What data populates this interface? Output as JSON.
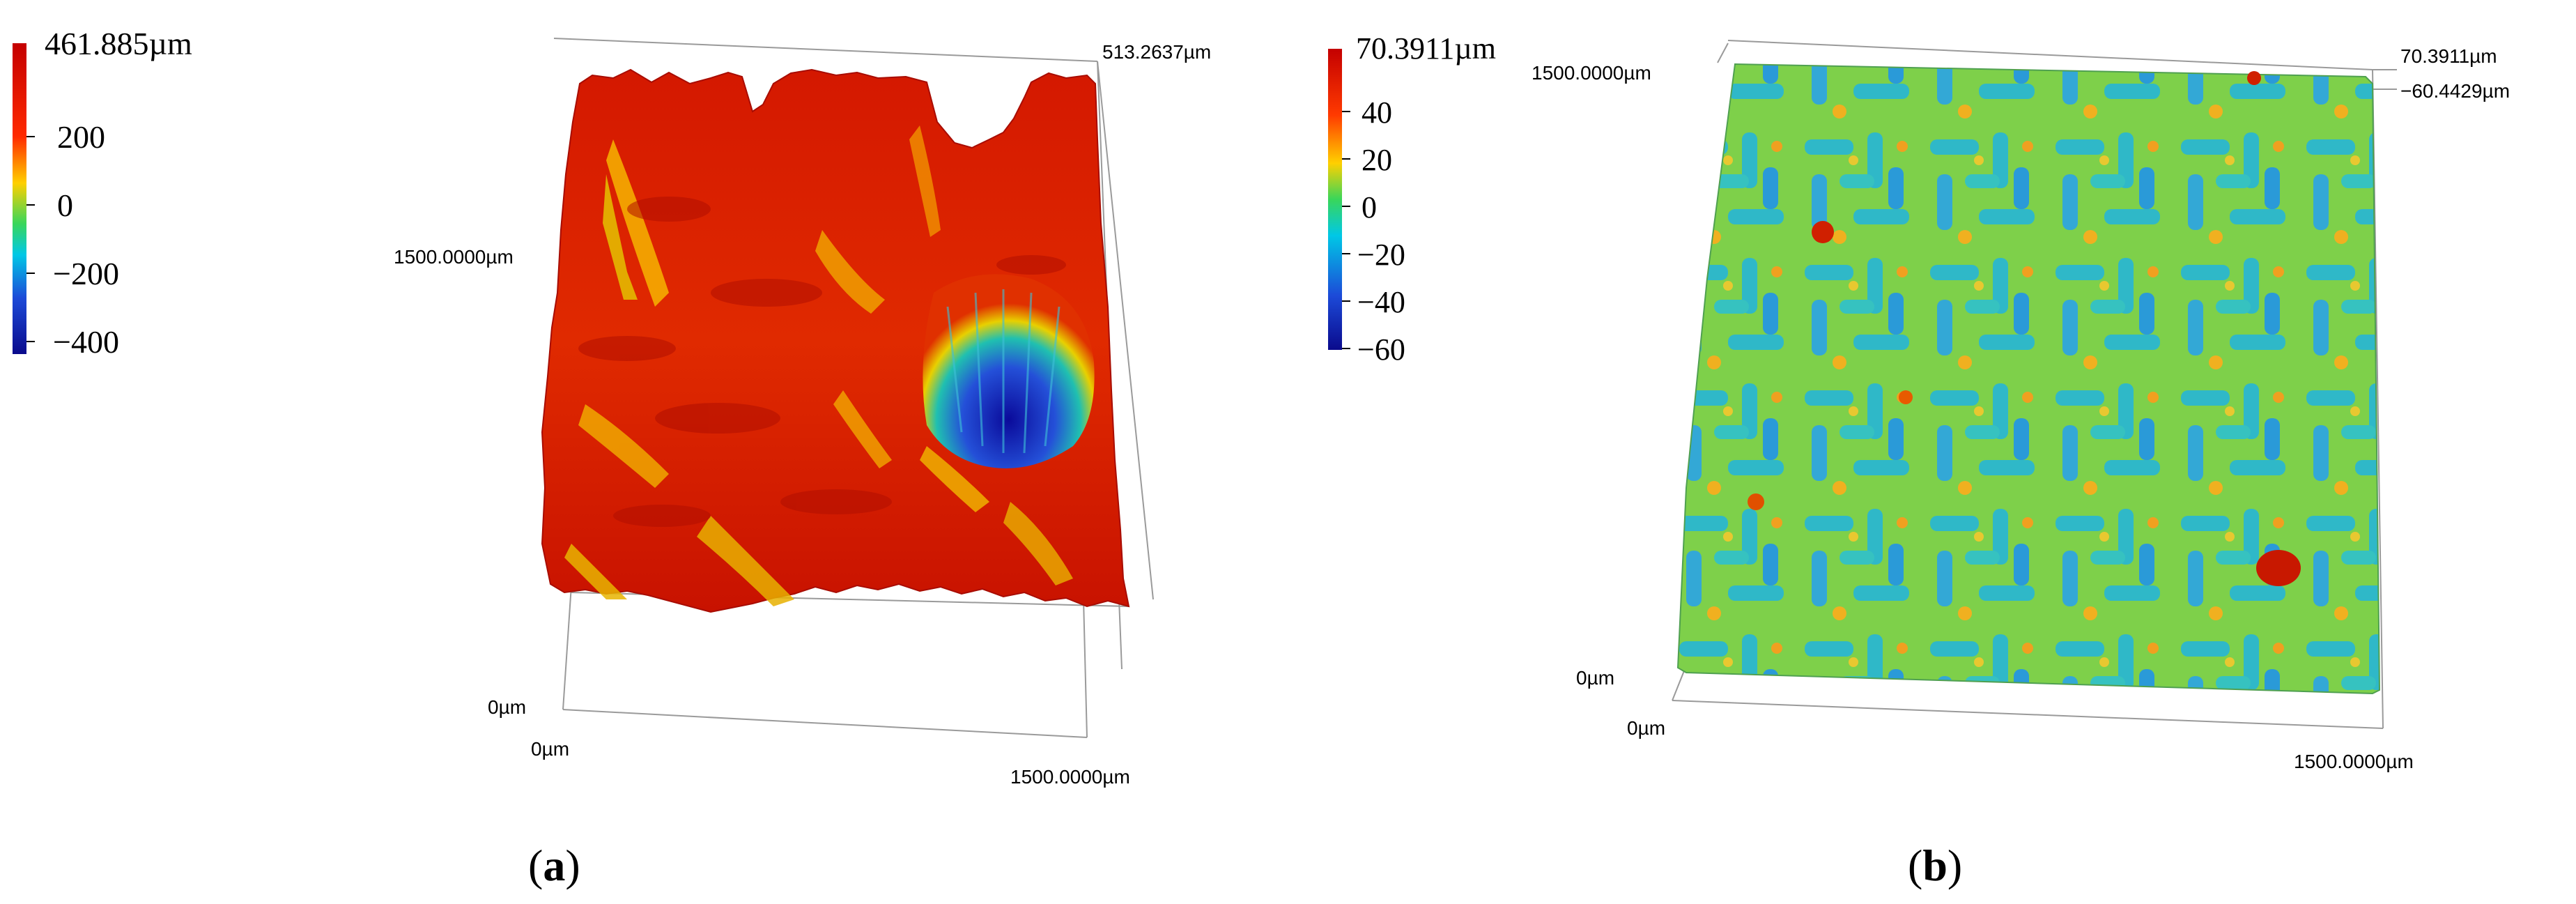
{
  "panels": [
    {
      "id": "a",
      "caption_open": "(",
      "caption_letter": "a",
      "caption_close": ")",
      "colorbar": {
        "max_label": "461.885µm",
        "ticks": [
          "200",
          "0",
          "−200",
          "−400"
        ],
        "colors": [
          "#c40000",
          "#ff2a00",
          "#ffd000",
          "#39d65a",
          "#00c8e6",
          "#1c4ad8",
          "#0a0a8c"
        ]
      },
      "axis_labels": {
        "z_top": "513.2637µm",
        "y_max": "1500.0000µm",
        "z_zero": "0µm",
        "x_zero": "0µm",
        "x_max": "1500.0000µm"
      }
    },
    {
      "id": "b",
      "caption_open": "(",
      "caption_letter": "b",
      "caption_close": ")",
      "colorbar": {
        "max_label": "70.3911µm",
        "ticks": [
          "40",
          "20",
          "0",
          "−20",
          "−40",
          "−60"
        ],
        "colors": [
          "#c40000",
          "#ff2a00",
          "#ffd000",
          "#39d65a",
          "#00c8e6",
          "#1c4ad8",
          "#0a0a8c"
        ]
      },
      "axis_labels": {
        "z_max": "70.3911µm",
        "z_min": "−60.4429µm",
        "y_max": "1500.0000µm",
        "z_zero": "0µm",
        "x_zero": "0µm",
        "x_max": "1500.0000µm"
      }
    }
  ]
}
